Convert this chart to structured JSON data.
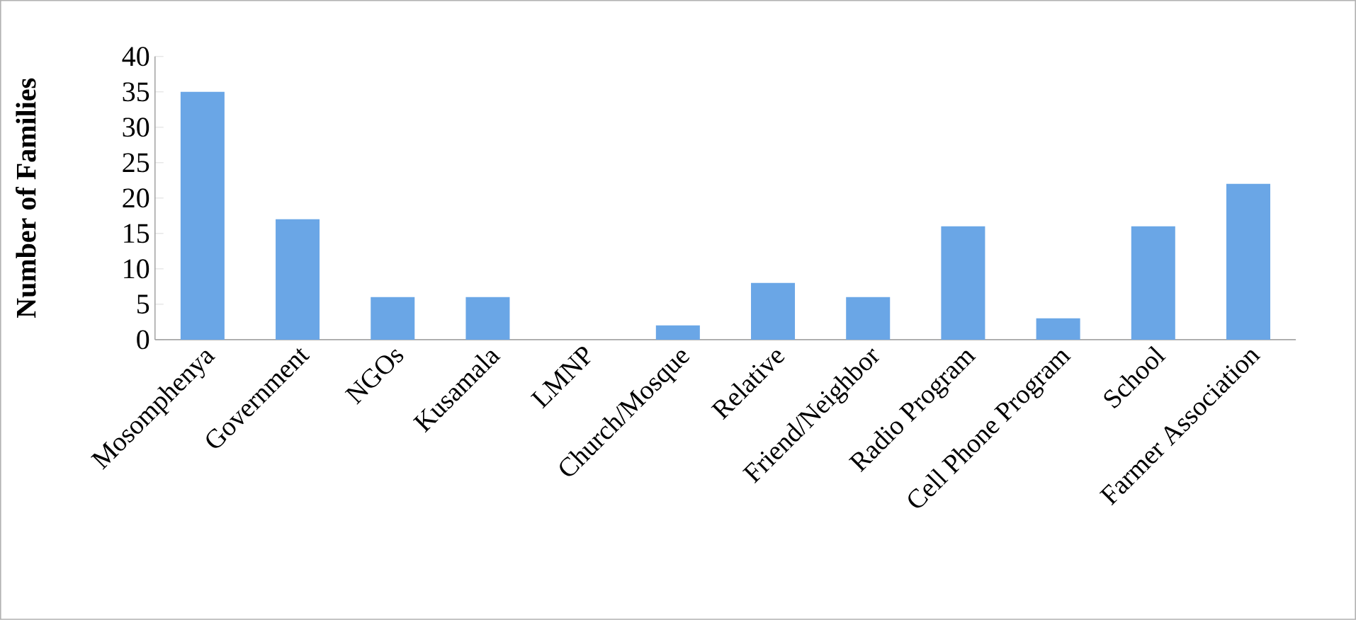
{
  "chart_data": {
    "type": "bar",
    "ylabel": "Number of Families",
    "categories": [
      "Mosomphenya",
      "Government",
      "NGOs",
      "Kusamala",
      "LMNP",
      "Church/Mosque",
      "Relative",
      "Friend/Neighbor",
      "Radio Program",
      "Cell Phone Program",
      "School",
      "Farmer Association"
    ],
    "values": [
      35,
      17,
      6,
      6,
      0,
      2,
      8,
      6,
      16,
      3,
      16,
      22
    ],
    "color": "#6aa6e6",
    "ylim": [
      0,
      40
    ],
    "yticks": [
      0,
      5,
      10,
      15,
      20,
      25,
      30,
      35,
      40
    ]
  }
}
